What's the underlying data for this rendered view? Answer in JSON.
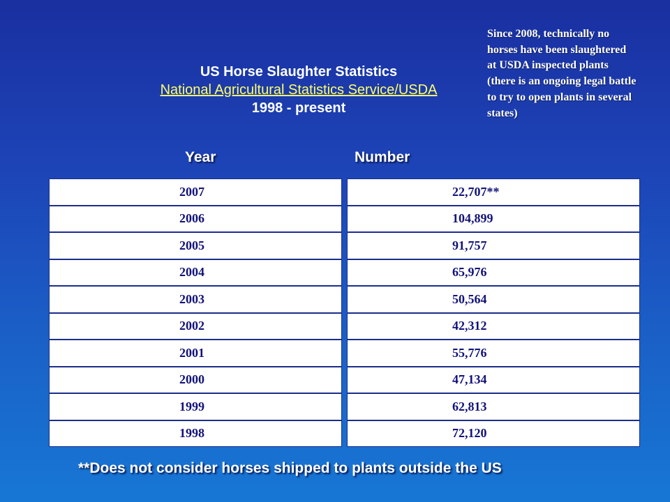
{
  "title": {
    "line1": "US Horse Slaughter Statistics",
    "source": "National Agricultural Statistics Service/USDA",
    "line3": "1998 - present"
  },
  "note": "Since 2008, technically no horses have been slaughtered at USDA inspected plants (there is an ongoing legal battle to try to open plants in several states)",
  "columns": {
    "year": "Year",
    "number": "Number"
  },
  "rows": [
    {
      "year": "2007",
      "number": "22,707**"
    },
    {
      "year": "2006",
      "number": "104,899"
    },
    {
      "year": "2005",
      "number": "91,757"
    },
    {
      "year": "2004",
      "number": "65,976"
    },
    {
      "year": "2003",
      "number": "50,564"
    },
    {
      "year": "2002",
      "number": "42,312"
    },
    {
      "year": "2001",
      "number": "55,776"
    },
    {
      "year": "2000",
      "number": "47,134"
    },
    {
      "year": "1999",
      "number": "62,813"
    },
    {
      "year": "1998",
      "number": "72,120"
    }
  ],
  "footnote": "**Does not consider horses shipped to plants outside the US",
  "colors": {
    "background": "#1d45b8",
    "link": "#ffff66",
    "cell_text": "#12127a"
  }
}
